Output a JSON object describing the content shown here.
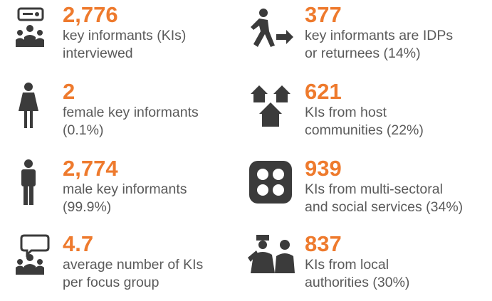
{
  "items": [
    {
      "value": "2,776",
      "lines": [
        "key informants (KIs)",
        "interviewed"
      ]
    },
    {
      "value": "2",
      "lines": [
        "female key informants",
        "(0.1%)"
      ]
    },
    {
      "value": "2,774",
      "lines": [
        "male key informants",
        "(99.9%)"
      ]
    },
    {
      "value": "4.7",
      "lines": [
        "average number of KIs",
        "per focus group"
      ]
    },
    {
      "value": "377",
      "lines": [
        "key informants are IDPs",
        "or returnees (14%)"
      ]
    },
    {
      "value": "621",
      "lines": [
        "KIs from host",
        "communities (22%)"
      ]
    },
    {
      "value": "939",
      "lines": [
        "KIs from multi-sectoral",
        "and social services (34%)"
      ]
    },
    {
      "value": "837",
      "lines": [
        "KIs from local",
        "authorities (30%)"
      ]
    }
  ]
}
